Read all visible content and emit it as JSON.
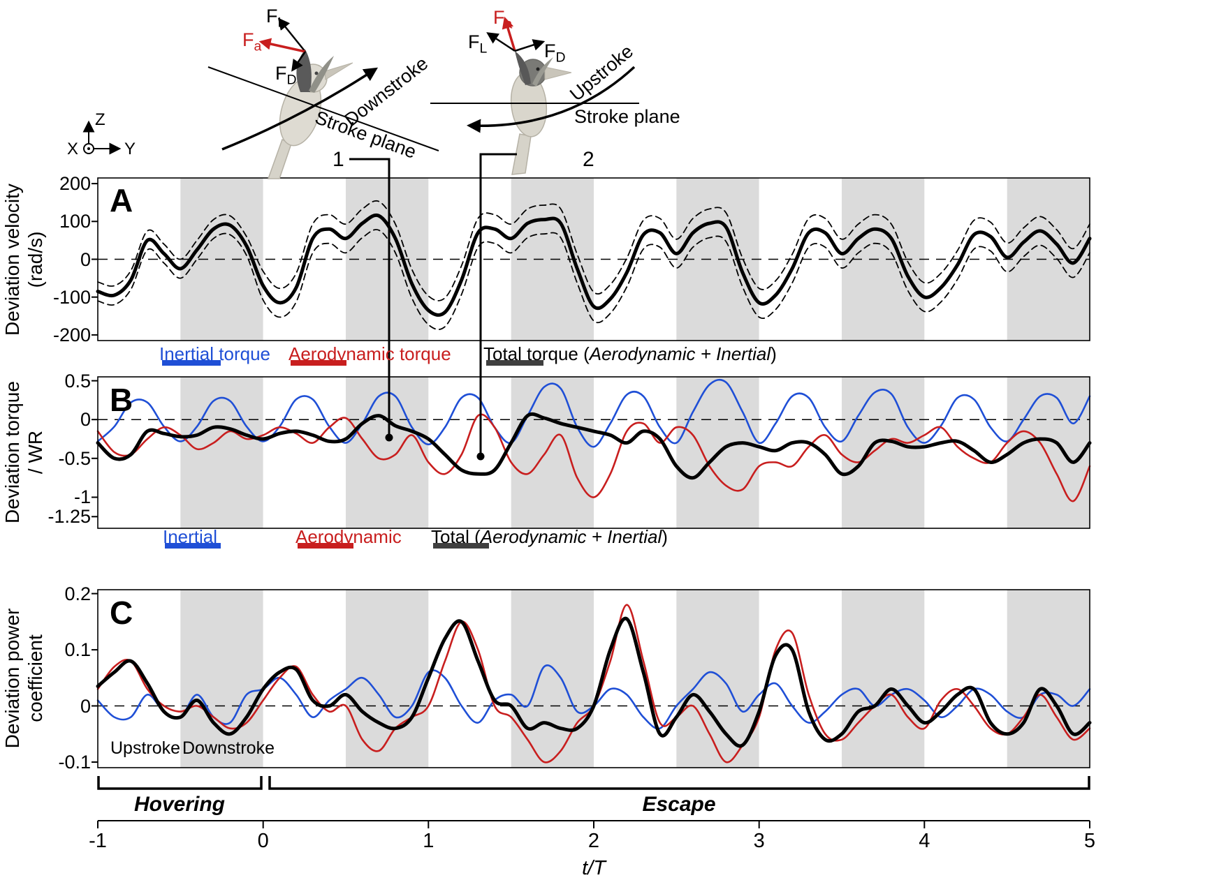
{
  "panel_letters": {
    "a": "A",
    "b": "B",
    "c": "C"
  },
  "illustration": {
    "force_symbol": "F",
    "sub_lift": "L",
    "sub_aero": "a",
    "sub_drag": "D",
    "downstroke": "Downstroke",
    "upstroke": "Upstroke",
    "stroke_plane": "Stroke plane",
    "marker_1": "1",
    "marker_2": "2",
    "axis_x": "X",
    "axis_y": "Y",
    "axis_z": "Z"
  },
  "legend_b": {
    "inertial": "Inertial torque",
    "aerodynamic": "Aerodynamic torque",
    "total_prefix": "Total torque (",
    "total_italic": "Aerodynamic + Inertial",
    "total_suffix": ")"
  },
  "legend_c": {
    "inertial": "Inertial",
    "aerodynamic": "Aerodynamic",
    "total_prefix": "Total (",
    "total_italic": "Aerodynamic + Inertial",
    "total_suffix": ")"
  },
  "annotations": {
    "upstroke": "Upstroke",
    "downstroke": "Downstroke"
  },
  "bottom": {
    "hovering": "Hovering",
    "escape": "Escape",
    "x_label": "t/T"
  },
  "colors": {
    "inertial": "#1f4fd6",
    "aerodynamic": "#c81e1e",
    "total": "#000000",
    "total_swatch": "#3f3f3f",
    "band": "#dbdbdb"
  },
  "chart_data": {
    "type": "line",
    "x_label": "t/T",
    "x_ticks": [
      -1,
      0,
      1,
      2,
      3,
      4,
      5
    ],
    "x_tick_labels": [
      "-1",
      "0",
      "1",
      "2",
      "3",
      "4",
      "5"
    ],
    "shaded_bands_x": [
      [
        -0.5,
        0
      ],
      [
        0.5,
        1
      ],
      [
        1.5,
        2
      ],
      [
        2.5,
        3
      ],
      [
        3.5,
        4
      ],
      [
        4.5,
        5
      ]
    ],
    "x": [
      -1,
      -0.9,
      -0.8,
      -0.7,
      -0.6,
      -0.5,
      -0.4,
      -0.3,
      -0.2,
      -0.1,
      0,
      0.1,
      0.2,
      0.3,
      0.4,
      0.5,
      0.6,
      0.7,
      0.8,
      0.9,
      1,
      1.1,
      1.2,
      1.3,
      1.4,
      1.5,
      1.6,
      1.7,
      1.8,
      1.9,
      2,
      2.1,
      2.2,
      2.3,
      2.4,
      2.5,
      2.6,
      2.7,
      2.8,
      2.9,
      3,
      3.1,
      3.2,
      3.3,
      3.4,
      3.5,
      3.6,
      3.7,
      3.8,
      3.9,
      4,
      4.1,
      4.2,
      4.3,
      4.4,
      4.5,
      4.6,
      4.7,
      4.8,
      4.9,
      5
    ],
    "panels": [
      {
        "id": "A",
        "ylabel_lines": [
          "Deviation velocity",
          "(rad/s)"
        ],
        "ylim": [
          -215,
          215
        ],
        "ytick_values": [
          200,
          100,
          0,
          -100,
          -200
        ],
        "ytick_labels": [
          "200",
          "100",
          "0",
          "-100",
          "-200"
        ],
        "series": [
          {
            "name": "mean_plus_sd",
            "color": "#000000",
            "width": 1.8,
            "dash": "9 6",
            "values": [
              -60,
              -70,
              -30,
              75,
              40,
              0,
              50,
              105,
              115,
              60,
              -32,
              -77,
              -37,
              93,
              118,
              93,
              133,
              153,
              93,
              -27,
              -97,
              -102,
              -17,
              108,
              118,
              93,
              133,
              143,
              133,
              13,
              -87,
              -67,
              3,
              103,
              108,
              53,
              108,
              133,
              123,
              3,
              -77,
              -57,
              13,
              108,
              108,
              53,
              93,
              118,
              93,
              -7,
              -62,
              -37,
              23,
              103,
              98,
              43,
              83,
              113,
              78,
              28,
              93
            ]
          },
          {
            "name": "mean_minus_sd",
            "color": "#000000",
            "width": 1.8,
            "dash": "9 6",
            "values": [
              -110,
              -120,
              -80,
              25,
              -10,
              -50,
              0,
              55,
              65,
              10,
              -108,
              -153,
              -113,
              17,
              42,
              17,
              57,
              77,
              17,
              -103,
              -173,
              -178,
              -93,
              32,
              42,
              17,
              57,
              67,
              57,
              -63,
              -163,
              -143,
              -73,
              27,
              32,
              -23,
              32,
              57,
              47,
              -73,
              -153,
              -133,
              -63,
              32,
              32,
              -23,
              17,
              42,
              17,
              -83,
              -138,
              -113,
              -53,
              27,
              22,
              -33,
              7,
              37,
              2,
              -48,
              17
            ]
          },
          {
            "name": "mean",
            "color": "#000000",
            "width": 5,
            "dash": "",
            "values": [
              -85,
              -95,
              -55,
              50,
              15,
              -25,
              25,
              80,
              90,
              35,
              -70,
              -115,
              -75,
              55,
              80,
              55,
              95,
              115,
              55,
              -65,
              -135,
              -140,
              -55,
              70,
              80,
              55,
              95,
              105,
              95,
              -25,
              -125,
              -105,
              -35,
              65,
              70,
              15,
              70,
              95,
              85,
              -35,
              -115,
              -95,
              -25,
              70,
              70,
              15,
              55,
              80,
              55,
              -45,
              -100,
              -75,
              -15,
              65,
              60,
              5,
              45,
              75,
              40,
              -10,
              55
            ]
          }
        ]
      },
      {
        "id": "B",
        "ylabel_lines": [
          "Deviation torque",
          "/ WR"
        ],
        "ylim": [
          -1.4,
          0.55
        ],
        "ytick_values": [
          0.5,
          0,
          -0.5,
          -1,
          -1.25
        ],
        "ytick_labels": [
          "0.5",
          "0",
          "-0.5",
          "-1",
          "-1.25"
        ],
        "series": [
          {
            "name": "inertial_torque",
            "color": "#1f4fd6",
            "width": 2.6,
            "dash": "",
            "values": [
              -0.28,
              -0.09,
              0.22,
              0.22,
              -0.09,
              -0.28,
              -0.09,
              0.24,
              0.24,
              -0.09,
              -0.28,
              -0.09,
              0.26,
              0.26,
              -0.09,
              -0.3,
              -0.05,
              0.3,
              0.3,
              -0.1,
              -0.32,
              -0.1,
              0.28,
              0.28,
              -0.1,
              -0.3,
              0.05,
              0.42,
              0.4,
              -0.1,
              -0.35,
              -0.05,
              0.32,
              0.3,
              -0.1,
              -0.3,
              0.1,
              0.45,
              0.48,
              0.1,
              -0.3,
              -0.05,
              0.3,
              0.28,
              -0.1,
              -0.28,
              0.05,
              0.35,
              0.33,
              -0.1,
              -0.3,
              -0.08,
              0.28,
              0.26,
              -0.1,
              -0.28,
              0.0,
              0.3,
              0.28,
              -0.05,
              0.3
            ]
          },
          {
            "name": "aerodynamic_torque",
            "color": "#c81e1e",
            "width": 2.6,
            "dash": "",
            "values": [
              -0.15,
              -0.42,
              -0.45,
              -0.25,
              -0.1,
              -0.2,
              -0.38,
              -0.3,
              -0.15,
              -0.25,
              -0.2,
              -0.1,
              -0.18,
              -0.3,
              -0.1,
              0.02,
              -0.25,
              -0.5,
              -0.45,
              -0.2,
              -0.55,
              -0.7,
              -0.45,
              0.05,
              -0.1,
              -0.55,
              -0.7,
              -0.45,
              -0.2,
              -0.75,
              -1.0,
              -0.7,
              -0.15,
              -0.05,
              -0.3,
              -0.1,
              -0.2,
              -0.6,
              -0.85,
              -0.9,
              -0.6,
              -0.55,
              -0.6,
              -0.35,
              -0.2,
              -0.45,
              -0.55,
              -0.4,
              -0.25,
              -0.3,
              -0.2,
              -0.1,
              -0.35,
              -0.5,
              -0.55,
              -0.3,
              -0.15,
              -0.3,
              -0.7,
              -1.05,
              -0.6
            ]
          },
          {
            "name": "total_torque",
            "color": "#000000",
            "width": 5,
            "dash": "",
            "values": [
              -0.3,
              -0.5,
              -0.45,
              -0.15,
              -0.18,
              -0.22,
              -0.2,
              -0.1,
              -0.12,
              -0.2,
              -0.25,
              -0.18,
              -0.15,
              -0.2,
              -0.28,
              -0.25,
              -0.05,
              0.05,
              -0.08,
              -0.15,
              -0.25,
              -0.45,
              -0.65,
              -0.7,
              -0.65,
              -0.3,
              0.05,
              0.02,
              -0.05,
              -0.1,
              -0.15,
              -0.2,
              -0.3,
              -0.15,
              -0.25,
              -0.6,
              -0.75,
              -0.55,
              -0.35,
              -0.3,
              -0.35,
              -0.4,
              -0.3,
              -0.3,
              -0.45,
              -0.7,
              -0.6,
              -0.3,
              -0.28,
              -0.35,
              -0.35,
              -0.3,
              -0.28,
              -0.4,
              -0.55,
              -0.45,
              -0.3,
              -0.25,
              -0.3,
              -0.55,
              -0.3
            ]
          }
        ]
      },
      {
        "id": "C",
        "ylabel_lines": [
          "Deviation power",
          "coefficient"
        ],
        "ylim": [
          -0.11,
          0.207
        ],
        "ytick_values": [
          0.2,
          0.1,
          0,
          -0.1
        ],
        "ytick_labels": [
          "0.2",
          "0.1",
          "0",
          "-0.1"
        ],
        "series": [
          {
            "name": "inertial_power",
            "color": "#1f4fd6",
            "width": 2.6,
            "dash": "",
            "values": [
              0.01,
              -0.02,
              -0.02,
              0.02,
              -0.01,
              -0.02,
              0.02,
              -0.02,
              -0.03,
              0.02,
              0.03,
              0.05,
              0.02,
              -0.02,
              0.01,
              0.03,
              0.05,
              0.02,
              -0.02,
              0.0,
              0.06,
              0.05,
              0.0,
              -0.03,
              0.01,
              0.02,
              0.0,
              0.07,
              0.05,
              -0.01,
              0.0,
              0.03,
              0.02,
              -0.02,
              -0.04,
              0.0,
              0.03,
              0.06,
              0.04,
              -0.01,
              0.02,
              0.04,
              0.0,
              -0.03,
              -0.01,
              0.02,
              0.03,
              0.0,
              0.02,
              0.03,
              0.01,
              -0.02,
              0.0,
              0.03,
              0.02,
              -0.01,
              -0.02,
              0.02,
              0.02,
              0.0,
              0.03
            ]
          },
          {
            "name": "aerodynamic_power",
            "color": "#c81e1e",
            "width": 2.6,
            "dash": "",
            "values": [
              0.03,
              0.07,
              0.08,
              0.03,
              0.0,
              -0.01,
              0.0,
              -0.02,
              -0.04,
              -0.03,
              0.01,
              0.05,
              0.07,
              0.02,
              -0.01,
              0.0,
              -0.06,
              -0.08,
              -0.04,
              -0.02,
              0.0,
              0.08,
              0.15,
              0.1,
              0.0,
              -0.02,
              -0.06,
              -0.1,
              -0.08,
              -0.03,
              0.0,
              0.08,
              0.18,
              0.08,
              -0.03,
              -0.02,
              0.0,
              -0.05,
              -0.1,
              -0.07,
              -0.02,
              0.1,
              0.13,
              0.02,
              -0.05,
              -0.06,
              -0.03,
              0.0,
              0.02,
              -0.02,
              -0.04,
              0.01,
              0.03,
              0.0,
              -0.04,
              -0.05,
              -0.02,
              0.02,
              -0.02,
              -0.06,
              -0.04
            ]
          },
          {
            "name": "total_power",
            "color": "#000000",
            "width": 5,
            "dash": "",
            "values": [
              0.035,
              0.06,
              0.08,
              0.04,
              -0.01,
              -0.02,
              0.01,
              -0.03,
              -0.05,
              -0.02,
              0.03,
              0.06,
              0.065,
              0.01,
              0.0,
              0.02,
              -0.01,
              -0.03,
              -0.04,
              -0.02,
              0.05,
              0.12,
              0.15,
              0.08,
              0.01,
              0.0,
              -0.04,
              -0.03,
              -0.04,
              -0.04,
              0.0,
              0.1,
              0.155,
              0.06,
              -0.05,
              -0.02,
              0.02,
              -0.01,
              -0.05,
              -0.07,
              -0.01,
              0.09,
              0.1,
              -0.01,
              -0.06,
              -0.05,
              -0.01,
              0.0,
              0.03,
              0.0,
              -0.03,
              -0.01,
              0.02,
              0.03,
              -0.03,
              -0.05,
              -0.03,
              0.03,
              0.0,
              -0.05,
              -0.03
            ]
          }
        ]
      }
    ]
  }
}
